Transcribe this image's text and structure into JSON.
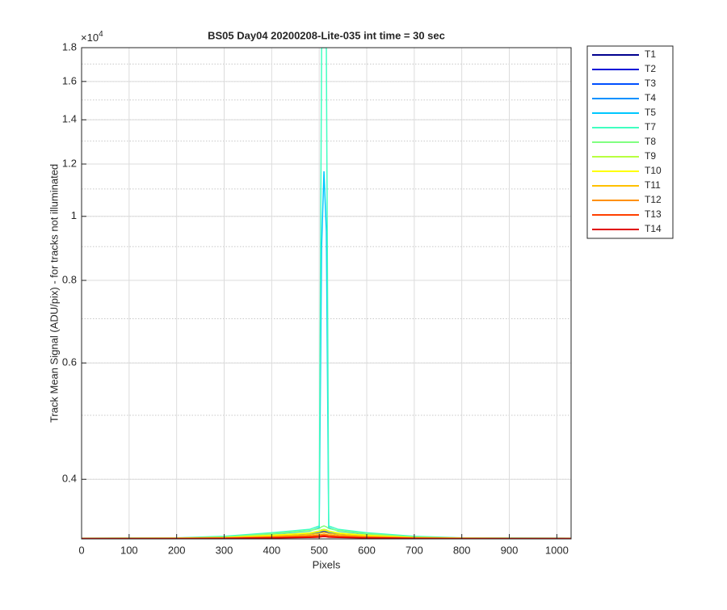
{
  "chart_data": {
    "type": "line",
    "title": "BS05 Day04 20200208-Lite-035 int time = 30 sec",
    "x_label": "Pixels",
    "y_label": "Track Mean Signal (ADU/pix) - for tracks not illuminated",
    "y_exponent": {
      "base": "×10",
      "power": "4"
    },
    "y_scale": "log",
    "grid": true,
    "minor_grid": true,
    "legend_position": "outside-right",
    "xlim": [
      0,
      1030
    ],
    "xticks": [
      0,
      100,
      200,
      300,
      400,
      500,
      600,
      700,
      800,
      900,
      1000
    ],
    "ylim": [
      3250,
      18000
    ],
    "yticks": [
      {
        "value": 4000,
        "label": "0.4"
      },
      {
        "value": 6000,
        "label": "0.6"
      },
      {
        "value": 8000,
        "label": "0.8"
      },
      {
        "value": 10000,
        "label": "1"
      },
      {
        "value": 12000,
        "label": "1.2"
      },
      {
        "value": 14000,
        "label": "1.4"
      },
      {
        "value": 16000,
        "label": "1.6"
      },
      {
        "value": 18000,
        "label": "1.8"
      }
    ],
    "yminorticks": [
      4000,
      5000,
      6000,
      7000,
      8000,
      9000,
      10000,
      11000,
      12000,
      13000,
      14000,
      15000,
      16000,
      17000,
      18000
    ],
    "x": [
      0,
      200,
      300,
      400,
      480,
      500,
      505,
      510,
      515,
      520,
      540,
      600,
      700,
      800,
      1030
    ],
    "series": [
      {
        "name": "T1",
        "color": "#00008f",
        "values": [
          3256,
          3257,
          3262,
          3285,
          3305,
          3320,
          3330,
          3335,
          3330,
          3320,
          3305,
          3285,
          3262,
          3257,
          3256
        ]
      },
      {
        "name": "T2",
        "color": "#0010d8",
        "values": [
          3256,
          3257,
          3262,
          3282,
          3300,
          3315,
          3325,
          3330,
          3325,
          3315,
          3300,
          3282,
          3262,
          3257,
          3256
        ]
      },
      {
        "name": "T3",
        "color": "#0050ff",
        "values": [
          3257,
          3258,
          3263,
          3288,
          3310,
          3325,
          3340,
          3345,
          3340,
          3325,
          3310,
          3288,
          3263,
          3258,
          3257
        ]
      },
      {
        "name": "T4",
        "color": "#0090ff",
        "values": [
          3257,
          3258,
          3264,
          3290,
          3315,
          3330,
          3350,
          3355,
          3350,
          3330,
          3315,
          3290,
          3264,
          3258,
          3257
        ]
      },
      {
        "name": "T5",
        "color": "#00c8ff",
        "values": [
          3258,
          3260,
          3270,
          3305,
          3340,
          3380,
          9000,
          11700,
          9500,
          3380,
          3340,
          3305,
          3270,
          3260,
          3258
        ]
      },
      {
        "name": "T7",
        "color": "#40ffc0",
        "values": [
          3258,
          3262,
          3280,
          3320,
          3360,
          3400,
          18000,
          18000,
          18000,
          3400,
          3360,
          3320,
          3280,
          3262,
          3258
        ]
      },
      {
        "name": "T8",
        "color": "#80ff80",
        "values": [
          3257,
          3260,
          3272,
          3310,
          3345,
          3370,
          3390,
          3400,
          3390,
          3370,
          3345,
          3310,
          3272,
          3260,
          3257
        ]
      },
      {
        "name": "T9",
        "color": "#b8ff40",
        "values": [
          3256,
          3258,
          3266,
          3295,
          3320,
          3340,
          3355,
          3360,
          3355,
          3340,
          3320,
          3295,
          3266,
          3258,
          3256
        ]
      },
      {
        "name": "T10",
        "color": "#ffff00",
        "values": [
          3256,
          3258,
          3265,
          3290,
          3315,
          3335,
          3345,
          3350,
          3345,
          3335,
          3315,
          3290,
          3265,
          3258,
          3256
        ]
      },
      {
        "name": "T11",
        "color": "#ffc000",
        "values": [
          3255,
          3257,
          3262,
          3280,
          3300,
          3312,
          3320,
          3325,
          3320,
          3312,
          3300,
          3280,
          3262,
          3257,
          3255
        ]
      },
      {
        "name": "T12",
        "color": "#ff9000",
        "values": [
          3255,
          3256,
          3260,
          3272,
          3285,
          3295,
          3300,
          3305,
          3300,
          3295,
          3285,
          3272,
          3260,
          3256,
          3255
        ]
      },
      {
        "name": "T13",
        "color": "#ff4000",
        "values": [
          3254,
          3255,
          3258,
          3265,
          3275,
          3282,
          3288,
          3290,
          3288,
          3282,
          3275,
          3265,
          3258,
          3255,
          3254
        ]
      },
      {
        "name": "T14",
        "color": "#e00000",
        "values": [
          3253,
          3254,
          3256,
          3260,
          3266,
          3270,
          3274,
          3276,
          3274,
          3270,
          3266,
          3260,
          3256,
          3254,
          3253
        ]
      }
    ]
  }
}
